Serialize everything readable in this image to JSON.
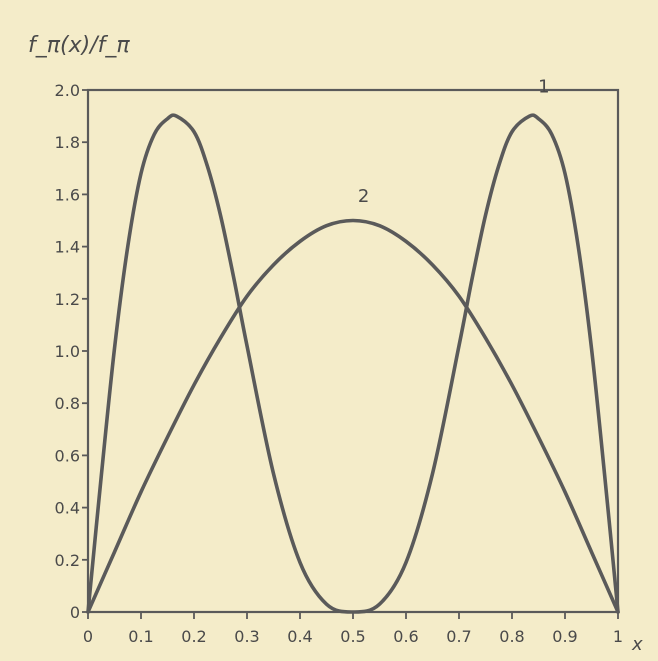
{
  "chart_data": {
    "type": "line",
    "title": "",
    "ylabel": "f_π(x)/f_π",
    "xlabel": "x",
    "xlim": [
      0,
      1
    ],
    "ylim": [
      0,
      2.0
    ],
    "x_ticks": [
      0,
      0.1,
      0.2,
      0.3,
      0.4,
      0.5,
      0.6,
      0.7,
      0.8,
      0.9,
      1
    ],
    "x_tick_labels": [
      "0",
      "0.1",
      "0.2",
      "0.3",
      "0.4",
      "0.5",
      "0.6",
      "0.7",
      "0.8",
      "0.9",
      "1"
    ],
    "y_ticks": [
      0,
      0.2,
      0.4,
      0.6,
      0.8,
      1.0,
      1.2,
      1.4,
      1.6,
      1.8,
      2.0
    ],
    "y_tick_labels": [
      "0",
      "0.2",
      "0.4",
      "0.6",
      "0.8",
      "1.0",
      "1.2",
      "1.4",
      "1.6",
      "1.8",
      "2.0"
    ],
    "grid": false,
    "line_color": "#5a5a5a",
    "series": [
      {
        "name": "1",
        "x": [
          0,
          0.025,
          0.05,
          0.075,
          0.1,
          0.125,
          0.15,
          0.167,
          0.2,
          0.225,
          0.25,
          0.275,
          0.3,
          0.35,
          0.4,
          0.45,
          0.5,
          0.55,
          0.6,
          0.65,
          0.7,
          0.725,
          0.75,
          0.775,
          0.8,
          0.833,
          0.85,
          0.875,
          0.9,
          0.925,
          0.95,
          0.975,
          1
        ],
        "y": [
          0,
          0.52,
          1.01,
          1.4,
          1.68,
          1.83,
          1.89,
          1.9,
          1.84,
          1.71,
          1.52,
          1.28,
          1.02,
          0.53,
          0.19,
          0.03,
          0,
          0.03,
          0.19,
          0.53,
          1.02,
          1.28,
          1.52,
          1.71,
          1.84,
          1.9,
          1.89,
          1.83,
          1.68,
          1.4,
          1.01,
          0.52,
          0
        ]
      },
      {
        "name": "2",
        "x": [
          0,
          0.05,
          0.1,
          0.15,
          0.2,
          0.25,
          0.3,
          0.35,
          0.4,
          0.45,
          0.5,
          0.55,
          0.6,
          0.65,
          0.7,
          0.75,
          0.8,
          0.85,
          0.9,
          0.95,
          1
        ],
        "y": [
          0,
          0.23,
          0.46,
          0.67,
          0.87,
          1.05,
          1.21,
          1.33,
          1.42,
          1.48,
          1.5,
          1.48,
          1.42,
          1.33,
          1.21,
          1.05,
          0.87,
          0.67,
          0.46,
          0.23,
          0
        ]
      }
    ]
  }
}
